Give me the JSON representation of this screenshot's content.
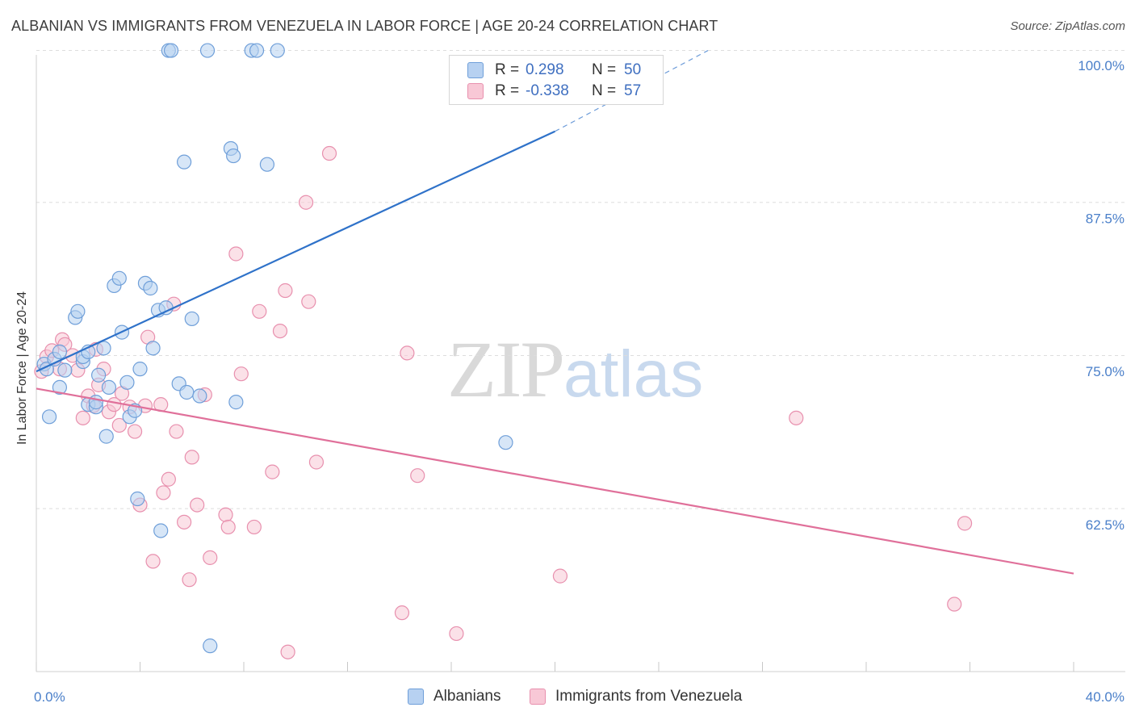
{
  "header": {
    "title": "ALBANIAN VS IMMIGRANTS FROM VENEZUELA IN LABOR FORCE | AGE 20-24 CORRELATION CHART",
    "source": "Source: ZipAtlas.com"
  },
  "watermark": {
    "zip": "ZIP",
    "atlas": "atlas"
  },
  "legend_top": {
    "rows": [
      {
        "r_label": "R =",
        "r_value": "0.298",
        "n_label": "N =",
        "n_value": "50"
      },
      {
        "r_label": "R =",
        "r_value": "-0.338",
        "n_label": "N =",
        "n_value": "57"
      }
    ]
  },
  "legend_bottom": {
    "items": [
      {
        "label": "Albanians"
      },
      {
        "label": "Immigrants from Venezuela"
      }
    ]
  },
  "colors": {
    "blue_fill": "#b7d1f1",
    "blue_stroke": "#6f9fd9",
    "blue_line": "#2f72c9",
    "pink_fill": "#f8c8d6",
    "pink_stroke": "#e890ae",
    "pink_line": "#e0709a",
    "grid": "#dddddd",
    "tick_text": "#4a7fc9"
  },
  "chart_data": {
    "type": "scatter",
    "title": "ALBANIAN VS IMMIGRANTS FROM VENEZUELA IN LABOR FORCE | AGE 20-24 CORRELATION CHART",
    "xlabel": "",
    "ylabel": "In Labor Force | Age 20-24",
    "xlim": [
      0,
      40
    ],
    "ylim": [
      50.5,
      101.5
    ],
    "x_tick_labels": [
      {
        "value": 0,
        "label": "0.0%"
      },
      {
        "value": 40,
        "label": "40.0%"
      }
    ],
    "y_tick_labels": [
      {
        "value": 100,
        "label": "100.0%"
      },
      {
        "value": 87.5,
        "label": "87.5%"
      },
      {
        "value": 75,
        "label": "75.0%"
      },
      {
        "value": 62.5,
        "label": "62.5%"
      }
    ],
    "y_gridlines": [
      101.2,
      88.8,
      76.3,
      63.8
    ],
    "grid": true,
    "legend_placement": "bottom",
    "series": [
      {
        "name": "Albanians",
        "color": "blue",
        "points": [
          [
            0.3,
            75.6
          ],
          [
            0.4,
            75.2
          ],
          [
            0.5,
            71.3
          ],
          [
            0.7,
            76.0
          ],
          [
            0.9,
            76.6
          ],
          [
            0.9,
            73.7
          ],
          [
            1.1,
            75.1
          ],
          [
            1.5,
            79.4
          ],
          [
            1.6,
            79.9
          ],
          [
            1.8,
            75.8
          ],
          [
            1.8,
            76.2
          ],
          [
            2.0,
            72.3
          ],
          [
            2.0,
            76.6
          ],
          [
            2.3,
            72.1
          ],
          [
            2.3,
            72.5
          ],
          [
            2.4,
            74.7
          ],
          [
            2.6,
            76.9
          ],
          [
            2.7,
            69.7
          ],
          [
            2.8,
            73.7
          ],
          [
            3.0,
            82.0
          ],
          [
            3.2,
            82.6
          ],
          [
            3.3,
            78.2
          ],
          [
            3.5,
            74.1
          ],
          [
            3.6,
            71.3
          ],
          [
            3.8,
            71.8
          ],
          [
            3.9,
            64.6
          ],
          [
            4.0,
            75.2
          ],
          [
            4.2,
            82.2
          ],
          [
            4.4,
            81.8
          ],
          [
            4.5,
            76.9
          ],
          [
            4.7,
            80.0
          ],
          [
            4.8,
            62.0
          ],
          [
            5.0,
            80.2
          ],
          [
            5.1,
            101.2
          ],
          [
            5.2,
            101.2
          ],
          [
            5.5,
            74.0
          ],
          [
            5.7,
            92.1
          ],
          [
            5.8,
            73.3
          ],
          [
            6.0,
            79.3
          ],
          [
            6.3,
            73.0
          ],
          [
            6.6,
            101.2
          ],
          [
            6.7,
            52.6
          ],
          [
            7.5,
            93.2
          ],
          [
            7.6,
            92.6
          ],
          [
            7.7,
            72.5
          ],
          [
            8.3,
            101.2
          ],
          [
            8.5,
            101.2
          ],
          [
            8.9,
            91.9
          ],
          [
            9.3,
            101.2
          ],
          [
            18.1,
            69.2
          ]
        ]
      },
      {
        "name": "Immigrants from Venezuela",
        "color": "pink",
        "points": [
          [
            0.2,
            75.0
          ],
          [
            0.4,
            76.2
          ],
          [
            0.6,
            76.7
          ],
          [
            0.9,
            75.2
          ],
          [
            1.0,
            77.6
          ],
          [
            1.1,
            77.2
          ],
          [
            1.4,
            76.3
          ],
          [
            1.6,
            75.1
          ],
          [
            1.8,
            71.2
          ],
          [
            2.0,
            73.0
          ],
          [
            2.2,
            72.2
          ],
          [
            2.3,
            76.8
          ],
          [
            2.4,
            73.9
          ],
          [
            2.6,
            75.2
          ],
          [
            2.8,
            71.7
          ],
          [
            3.0,
            72.3
          ],
          [
            3.2,
            70.6
          ],
          [
            3.3,
            73.2
          ],
          [
            3.6,
            72.1
          ],
          [
            3.8,
            70.1
          ],
          [
            4.0,
            64.1
          ],
          [
            4.2,
            72.2
          ],
          [
            4.3,
            77.8
          ],
          [
            4.5,
            59.5
          ],
          [
            4.8,
            72.3
          ],
          [
            4.9,
            65.1
          ],
          [
            5.1,
            66.2
          ],
          [
            5.3,
            80.5
          ],
          [
            5.4,
            70.1
          ],
          [
            5.7,
            62.7
          ],
          [
            5.9,
            58.0
          ],
          [
            6.0,
            68.0
          ],
          [
            6.2,
            64.1
          ],
          [
            6.5,
            73.1
          ],
          [
            6.7,
            59.8
          ],
          [
            7.3,
            63.3
          ],
          [
            7.4,
            62.3
          ],
          [
            7.7,
            84.6
          ],
          [
            7.9,
            74.8
          ],
          [
            8.4,
            62.3
          ],
          [
            8.6,
            79.9
          ],
          [
            9.1,
            66.8
          ],
          [
            9.4,
            78.3
          ],
          [
            9.6,
            81.6
          ],
          [
            9.7,
            52.1
          ],
          [
            10.4,
            88.8
          ],
          [
            10.5,
            80.7
          ],
          [
            10.8,
            67.6
          ],
          [
            11.3,
            92.8
          ],
          [
            14.1,
            55.3
          ],
          [
            14.3,
            76.5
          ],
          [
            14.7,
            66.5
          ],
          [
            16.2,
            53.6
          ],
          [
            20.2,
            58.3
          ],
          [
            29.3,
            71.2
          ],
          [
            35.4,
            56.0
          ],
          [
            35.8,
            62.6
          ]
        ]
      }
    ],
    "trendlines": [
      {
        "series": "Albanians",
        "x0": 0,
        "y0": 75.0,
        "x1": 20,
        "y1": 94.6,
        "dashed_x1": 25.9,
        "dashed_y1": 101.2
      },
      {
        "series": "Immigrants from Venezuela",
        "x0": 0,
        "y0": 73.6,
        "x1": 40,
        "y1": 58.5
      }
    ]
  }
}
